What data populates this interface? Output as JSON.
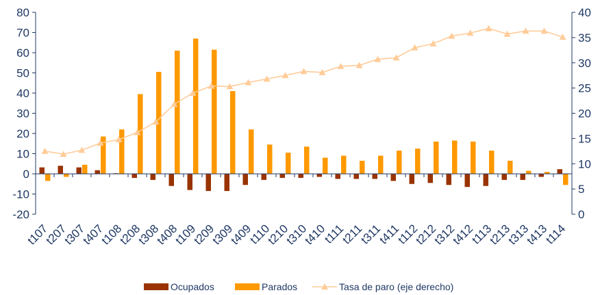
{
  "chart_data": {
    "type": "bar",
    "categories": [
      "t107",
      "t207",
      "t307",
      "t407",
      "t108",
      "t208",
      "t308",
      "t408",
      "t109",
      "t209",
      "t309",
      "t409",
      "t110",
      "t210",
      "t310",
      "t410",
      "t111",
      "t211",
      "t311",
      "t411",
      "t112",
      "t212",
      "t312",
      "t412",
      "t113",
      "t213",
      "t313",
      "t413",
      "t114"
    ],
    "series": [
      {
        "name": "Ocupados",
        "type": "bar",
        "axis": "left",
        "color": "#993300",
        "values": [
          3.2,
          4.0,
          3.2,
          1.8,
          0.3,
          -2.0,
          -3.0,
          -6.0,
          -8.0,
          -8.5,
          -8.5,
          -5.5,
          -3.0,
          -2.0,
          -2.0,
          -1.5,
          -2.5,
          -2.5,
          -2.5,
          -3.5,
          -5.0,
          -4.5,
          -5.5,
          -6.5,
          -6.0,
          -3.0,
          -3.0,
          -1.5,
          2.3
        ]
      },
      {
        "name": "Parados",
        "type": "bar",
        "axis": "left",
        "color": "#ff9900",
        "values": [
          -3.5,
          -1.5,
          4.5,
          18.5,
          22.0,
          39.5,
          50.5,
          61.0,
          67.0,
          61.5,
          41.0,
          22.0,
          14.5,
          10.5,
          13.5,
          8.0,
          9.0,
          6.5,
          9.0,
          11.5,
          12.5,
          16.0,
          16.5,
          16.0,
          11.5,
          6.5,
          1.5,
          1.0,
          -5.5
        ]
      },
      {
        "name": "Tasa de paro (eje derecho)",
        "type": "line",
        "axis": "right",
        "color": "#ffcc99",
        "values": [
          12.5,
          11.9,
          12.7,
          14.1,
          14.8,
          16.2,
          18.3,
          21.8,
          24.0,
          25.4,
          25.3,
          26.1,
          26.8,
          27.5,
          28.3,
          28.1,
          29.3,
          29.5,
          30.7,
          31.0,
          33.0,
          33.8,
          35.3,
          35.9,
          36.8,
          35.7,
          36.3,
          36.3,
          35.1
        ]
      }
    ],
    "ylim": [
      -20,
      80
    ],
    "y_ticks": [
      -20,
      -10,
      0,
      10,
      20,
      30,
      40,
      50,
      60,
      70,
      80
    ],
    "y2lim": [
      0,
      40
    ],
    "y2_ticks": [
      0,
      5,
      10,
      15,
      20,
      25,
      30,
      35,
      40
    ],
    "grid": false,
    "legend_position": "bottom",
    "colors": {
      "axis": "#1f3864",
      "text": "#1f3864"
    }
  }
}
